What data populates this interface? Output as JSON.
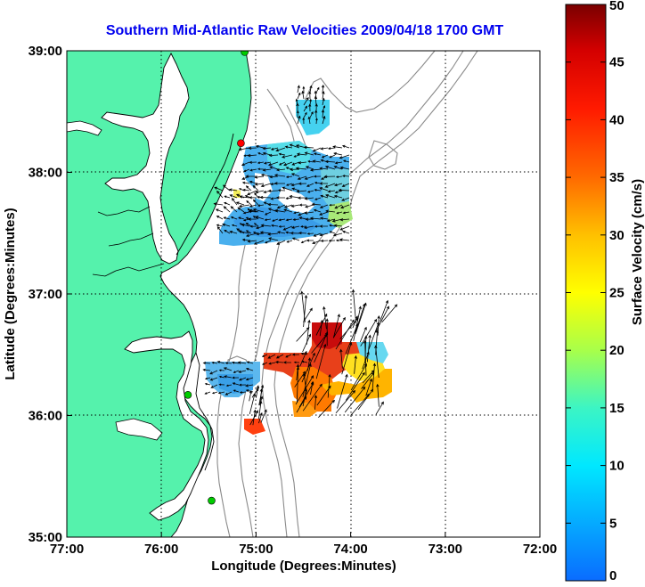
{
  "title": "Southern Mid-Atlantic Raw Velocities 2009/04/18 1700 GMT",
  "axes": {
    "xlabel": "Longitude (Degrees:Minutes)",
    "ylabel": "Latitude (Degrees:Minutes)",
    "x_ticks": [
      "77:00",
      "76:00",
      "75:00",
      "74:00",
      "73:00",
      "72:00"
    ],
    "y_ticks": [
      "39:00",
      "38:00",
      "37:00",
      "36:00",
      "35:00"
    ],
    "xlim": [
      -77,
      -72
    ],
    "ylim": [
      35,
      39
    ]
  },
  "colorbar": {
    "label": "Surface Velocity (cm/s)",
    "ticks": [
      "50",
      "45",
      "40",
      "35",
      "30",
      "25",
      "20",
      "15",
      "10",
      "5",
      "0"
    ],
    "range": [
      0,
      50
    ]
  },
  "stations": [
    {
      "color": "#00cc00",
      "lon": -75.12,
      "lat": 38.99
    },
    {
      "color": "#ff0000",
      "lon": -75.16,
      "lat": 38.24
    },
    {
      "color": "#00cc00",
      "lon": -75.72,
      "lat": 36.17
    },
    {
      "color": "#00cc00",
      "lon": -75.47,
      "lat": 35.3
    }
  ],
  "colors": {
    "land": "#55f2ac",
    "title": "#0000ee",
    "bathymetry": "#8a8a8a"
  }
}
